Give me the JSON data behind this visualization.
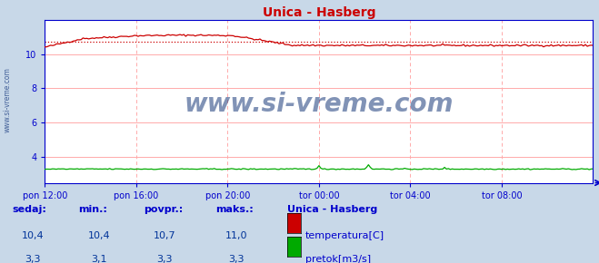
{
  "title": "Unica - Hasberg",
  "title_color": "#cc0000",
  "fig_bg_color": "#c8d8e8",
  "plot_bg_color": "#ffffff",
  "grid_color": "#ffaaaa",
  "axis_color": "#0000cc",
  "x_min": 0,
  "x_max": 288,
  "y_min": 2.5,
  "y_max": 12.0,
  "yticks": [
    4,
    6,
    8,
    10
  ],
  "xtick_labels": [
    "pon 12:00",
    "pon 16:00",
    "pon 20:00",
    "tor 00:00",
    "tor 04:00",
    "tor 08:00"
  ],
  "xtick_positions": [
    0,
    48,
    96,
    144,
    192,
    240
  ],
  "temp_color": "#cc0000",
  "temp_avg_color": "#cc0000",
  "flow_color": "#00aa00",
  "temp_avg": 10.7,
  "flow_avg": 3.3,
  "watermark": "www.si-vreme.com",
  "legend_title": "Unica - Hasberg",
  "legend_items": [
    "temperatura[C]",
    "pretok[m3/s]"
  ],
  "legend_colors": [
    "#cc0000",
    "#00aa00"
  ],
  "stats_headers": [
    "sedaj:",
    "min.:",
    "povpr.:",
    "maks.:"
  ],
  "stats_temp": [
    "10,4",
    "10,4",
    "10,7",
    "11,0"
  ],
  "stats_flow": [
    "3,3",
    "3,1",
    "3,3",
    "3,3"
  ],
  "label_color": "#0000cc",
  "sidebar_text": "www.si-vreme.com"
}
